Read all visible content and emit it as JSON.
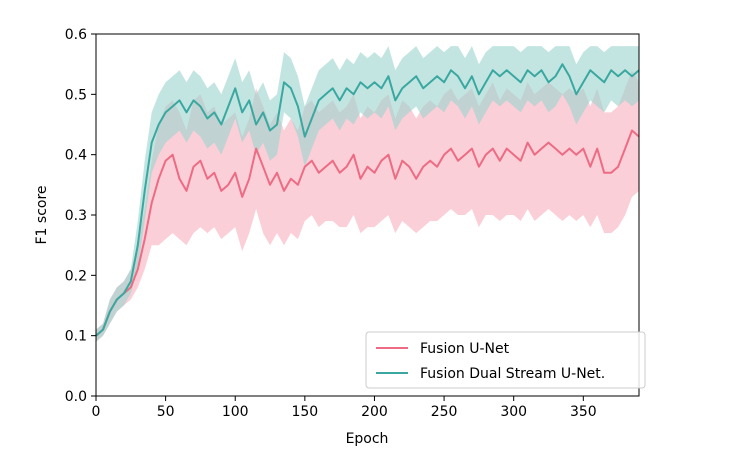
{
  "chart_data": {
    "type": "line",
    "title": "",
    "xlabel": "Epoch",
    "ylabel": "F1 score",
    "xlim": [
      0,
      390
    ],
    "ylim": [
      0.0,
      0.6
    ],
    "xticks": [
      0,
      50,
      100,
      150,
      200,
      250,
      300,
      350
    ],
    "xtick_labels": [
      "0",
      "50",
      "100",
      "150",
      "200",
      "250",
      "300",
      "350"
    ],
    "yticks": [
      0.0,
      0.1,
      0.2,
      0.3,
      0.4,
      0.5,
      0.6
    ],
    "ytick_labels": [
      "0.0",
      "0.1",
      "0.2",
      "0.3",
      "0.4",
      "0.5",
      "0.6"
    ],
    "grid": false,
    "legend_position": "lower-right",
    "series": [
      {
        "name": "Fusion U-Net",
        "color": "#ee6b84",
        "band_color": "#f7a8b8",
        "x": [
          0,
          5,
          10,
          15,
          20,
          25,
          30,
          35,
          40,
          45,
          50,
          55,
          60,
          65,
          70,
          75,
          80,
          85,
          90,
          95,
          100,
          105,
          110,
          115,
          120,
          125,
          130,
          135,
          140,
          145,
          150,
          155,
          160,
          165,
          170,
          175,
          180,
          185,
          190,
          195,
          200,
          205,
          210,
          215,
          220,
          225,
          230,
          235,
          240,
          245,
          250,
          255,
          260,
          265,
          270,
          275,
          280,
          285,
          290,
          295,
          300,
          305,
          310,
          315,
          320,
          325,
          330,
          335,
          340,
          345,
          350,
          355,
          360,
          365,
          370,
          375,
          380,
          385,
          390
        ],
        "y": [
          0.1,
          0.11,
          0.14,
          0.16,
          0.17,
          0.18,
          0.21,
          0.26,
          0.32,
          0.36,
          0.39,
          0.4,
          0.36,
          0.34,
          0.38,
          0.39,
          0.36,
          0.37,
          0.34,
          0.35,
          0.37,
          0.33,
          0.36,
          0.41,
          0.38,
          0.35,
          0.37,
          0.34,
          0.36,
          0.35,
          0.38,
          0.39,
          0.37,
          0.38,
          0.39,
          0.37,
          0.38,
          0.4,
          0.36,
          0.38,
          0.37,
          0.39,
          0.4,
          0.36,
          0.39,
          0.38,
          0.36,
          0.38,
          0.39,
          0.38,
          0.4,
          0.41,
          0.39,
          0.4,
          0.41,
          0.38,
          0.4,
          0.41,
          0.39,
          0.41,
          0.4,
          0.39,
          0.42,
          0.4,
          0.41,
          0.42,
          0.41,
          0.4,
          0.41,
          0.4,
          0.41,
          0.38,
          0.41,
          0.37,
          0.37,
          0.38,
          0.41,
          0.44,
          0.43
        ],
        "lower": [
          0.09,
          0.1,
          0.12,
          0.14,
          0.15,
          0.16,
          0.18,
          0.21,
          0.25,
          0.25,
          0.26,
          0.27,
          0.26,
          0.25,
          0.27,
          0.28,
          0.27,
          0.28,
          0.26,
          0.27,
          0.28,
          0.24,
          0.27,
          0.31,
          0.27,
          0.25,
          0.27,
          0.25,
          0.27,
          0.26,
          0.29,
          0.3,
          0.28,
          0.29,
          0.29,
          0.28,
          0.28,
          0.3,
          0.27,
          0.28,
          0.28,
          0.29,
          0.3,
          0.27,
          0.29,
          0.28,
          0.27,
          0.28,
          0.29,
          0.29,
          0.3,
          0.31,
          0.3,
          0.3,
          0.31,
          0.28,
          0.3,
          0.3,
          0.29,
          0.3,
          0.3,
          0.29,
          0.31,
          0.29,
          0.3,
          0.31,
          0.3,
          0.29,
          0.3,
          0.29,
          0.3,
          0.28,
          0.3,
          0.27,
          0.27,
          0.28,
          0.3,
          0.33,
          0.34
        ],
        "upper": [
          0.11,
          0.12,
          0.16,
          0.18,
          0.19,
          0.21,
          0.25,
          0.31,
          0.39,
          0.45,
          0.48,
          0.49,
          0.47,
          0.44,
          0.49,
          0.5,
          0.47,
          0.48,
          0.45,
          0.46,
          0.47,
          0.43,
          0.46,
          0.51,
          0.48,
          0.45,
          0.47,
          0.44,
          0.46,
          0.44,
          0.48,
          0.49,
          0.47,
          0.48,
          0.49,
          0.47,
          0.48,
          0.5,
          0.46,
          0.48,
          0.47,
          0.49,
          0.5,
          0.46,
          0.49,
          0.48,
          0.46,
          0.48,
          0.49,
          0.48,
          0.5,
          0.51,
          0.49,
          0.5,
          0.51,
          0.48,
          0.5,
          0.52,
          0.49,
          0.51,
          0.5,
          0.49,
          0.52,
          0.5,
          0.51,
          0.52,
          0.51,
          0.5,
          0.51,
          0.5,
          0.51,
          0.48,
          0.51,
          0.47,
          0.47,
          0.48,
          0.51,
          0.54,
          0.52
        ]
      },
      {
        "name": "Fusion Dual Stream U-Net.",
        "color": "#3aa8a0",
        "band_color": "#9bd4cf",
        "x": [
          0,
          5,
          10,
          15,
          20,
          25,
          30,
          35,
          40,
          45,
          50,
          55,
          60,
          65,
          70,
          75,
          80,
          85,
          90,
          95,
          100,
          105,
          110,
          115,
          120,
          125,
          130,
          135,
          140,
          145,
          150,
          155,
          160,
          165,
          170,
          175,
          180,
          185,
          190,
          195,
          200,
          205,
          210,
          215,
          220,
          225,
          230,
          235,
          240,
          245,
          250,
          255,
          260,
          265,
          270,
          275,
          280,
          285,
          290,
          295,
          300,
          305,
          310,
          315,
          320,
          325,
          330,
          335,
          340,
          345,
          350,
          355,
          360,
          365,
          370,
          375,
          380,
          385,
          390
        ],
        "y": [
          0.1,
          0.11,
          0.14,
          0.16,
          0.17,
          0.19,
          0.25,
          0.34,
          0.42,
          0.45,
          0.47,
          0.48,
          0.49,
          0.47,
          0.49,
          0.48,
          0.46,
          0.47,
          0.45,
          0.48,
          0.51,
          0.47,
          0.49,
          0.45,
          0.47,
          0.44,
          0.45,
          0.52,
          0.51,
          0.48,
          0.43,
          0.46,
          0.49,
          0.5,
          0.51,
          0.49,
          0.51,
          0.5,
          0.52,
          0.51,
          0.52,
          0.51,
          0.53,
          0.49,
          0.51,
          0.52,
          0.53,
          0.51,
          0.52,
          0.53,
          0.52,
          0.54,
          0.53,
          0.51,
          0.53,
          0.5,
          0.52,
          0.54,
          0.53,
          0.54,
          0.53,
          0.52,
          0.54,
          0.53,
          0.54,
          0.52,
          0.53,
          0.55,
          0.53,
          0.5,
          0.52,
          0.54,
          0.53,
          0.52,
          0.54,
          0.53,
          0.54,
          0.53,
          0.54
        ],
        "lower": [
          0.09,
          0.1,
          0.12,
          0.14,
          0.15,
          0.17,
          0.21,
          0.29,
          0.37,
          0.4,
          0.42,
          0.43,
          0.44,
          0.42,
          0.44,
          0.43,
          0.41,
          0.42,
          0.4,
          0.43,
          0.46,
          0.42,
          0.44,
          0.4,
          0.42,
          0.39,
          0.4,
          0.47,
          0.46,
          0.43,
          0.38,
          0.41,
          0.44,
          0.45,
          0.46,
          0.44,
          0.46,
          0.45,
          0.47,
          0.46,
          0.47,
          0.46,
          0.48,
          0.44,
          0.46,
          0.47,
          0.48,
          0.46,
          0.47,
          0.48,
          0.47,
          0.49,
          0.48,
          0.46,
          0.48,
          0.45,
          0.47,
          0.49,
          0.48,
          0.49,
          0.48,
          0.47,
          0.49,
          0.48,
          0.49,
          0.47,
          0.48,
          0.5,
          0.48,
          0.45,
          0.47,
          0.49,
          0.48,
          0.47,
          0.49,
          0.48,
          0.49,
          0.48,
          0.49
        ],
        "upper": [
          0.11,
          0.12,
          0.16,
          0.18,
          0.19,
          0.21,
          0.29,
          0.39,
          0.47,
          0.5,
          0.52,
          0.53,
          0.54,
          0.52,
          0.54,
          0.53,
          0.51,
          0.52,
          0.5,
          0.53,
          0.56,
          0.52,
          0.54,
          0.5,
          0.52,
          0.49,
          0.5,
          0.57,
          0.56,
          0.53,
          0.48,
          0.51,
          0.54,
          0.55,
          0.56,
          0.54,
          0.56,
          0.55,
          0.57,
          0.56,
          0.57,
          0.56,
          0.58,
          0.54,
          0.56,
          0.57,
          0.58,
          0.56,
          0.57,
          0.58,
          0.57,
          0.58,
          0.58,
          0.56,
          0.58,
          0.55,
          0.57,
          0.58,
          0.58,
          0.58,
          0.58,
          0.57,
          0.58,
          0.58,
          0.58,
          0.57,
          0.58,
          0.58,
          0.58,
          0.55,
          0.57,
          0.58,
          0.58,
          0.57,
          0.58,
          0.58,
          0.58,
          0.58,
          0.58
        ]
      }
    ]
  }
}
